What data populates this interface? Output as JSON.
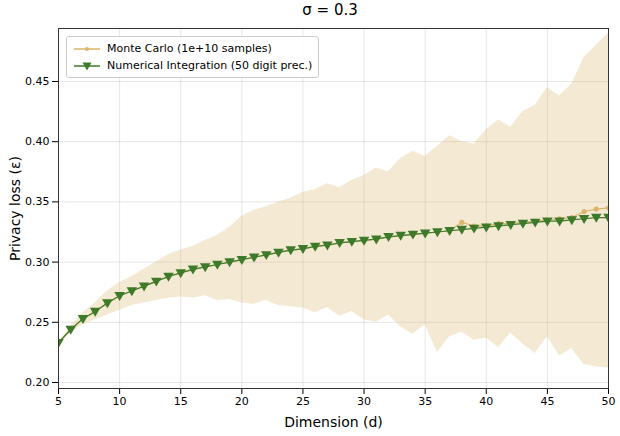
{
  "chart_data": {
    "type": "line",
    "title": "σ = 0.3",
    "x_label": "Dimension (d)",
    "y_label": "Privacy loss (ε)",
    "x": [
      5,
      6,
      7,
      8,
      9,
      10,
      11,
      12,
      13,
      14,
      15,
      16,
      17,
      18,
      19,
      20,
      21,
      22,
      23,
      24,
      25,
      26,
      27,
      28,
      29,
      30,
      31,
      32,
      33,
      34,
      35,
      36,
      37,
      38,
      39,
      40,
      41,
      42,
      43,
      44,
      45,
      46,
      47,
      48,
      49,
      50
    ],
    "series": [
      {
        "name": "Monte Carlo (1e+10 samples)",
        "color": "#dab56a",
        "marker": "circle",
        "values": [
          0.233,
          0.244,
          0.253,
          0.259,
          0.266,
          0.272,
          0.276,
          0.28,
          0.284,
          0.288,
          0.291,
          0.294,
          0.296,
          0.298,
          0.3,
          0.302,
          0.304,
          0.306,
          0.308,
          0.31,
          0.311,
          0.313,
          0.314,
          0.316,
          0.317,
          0.318,
          0.319,
          0.321,
          0.322,
          0.323,
          0.324,
          0.325,
          0.326,
          0.333,
          0.33,
          0.33,
          0.332,
          0.332,
          0.333,
          0.334,
          0.335,
          0.336,
          0.337,
          0.342,
          0.344,
          0.345
        ],
        "lower": [
          0.233,
          0.241,
          0.248,
          0.252,
          0.256,
          0.26,
          0.264,
          0.266,
          0.268,
          0.27,
          0.271,
          0.27,
          0.272,
          0.268,
          0.269,
          0.266,
          0.265,
          0.268,
          0.264,
          0.263,
          0.262,
          0.258,
          0.262,
          0.255,
          0.259,
          0.252,
          0.25,
          0.256,
          0.246,
          0.24,
          0.248,
          0.225,
          0.238,
          0.242,
          0.235,
          0.237,
          0.229,
          0.241,
          0.232,
          0.224,
          0.238,
          0.222,
          0.228,
          0.215,
          0.213,
          0.212
        ],
        "upper": [
          0.233,
          0.247,
          0.258,
          0.266,
          0.276,
          0.283,
          0.288,
          0.294,
          0.3,
          0.306,
          0.31,
          0.313,
          0.318,
          0.322,
          0.329,
          0.338,
          0.343,
          0.346,
          0.35,
          0.353,
          0.358,
          0.36,
          0.365,
          0.362,
          0.368,
          0.372,
          0.378,
          0.375,
          0.386,
          0.392,
          0.388,
          0.396,
          0.405,
          0.4,
          0.398,
          0.41,
          0.418,
          0.412,
          0.425,
          0.43,
          0.445,
          0.438,
          0.448,
          0.47,
          0.48,
          0.49
        ]
      },
      {
        "name": "Numerical Integration (50 digit prec.)",
        "color": "#3d7a2a",
        "marker": "triangle-down",
        "values": [
          0.233,
          0.244,
          0.253,
          0.259,
          0.266,
          0.272,
          0.276,
          0.28,
          0.284,
          0.288,
          0.291,
          0.294,
          0.296,
          0.298,
          0.3,
          0.302,
          0.304,
          0.306,
          0.308,
          0.31,
          0.311,
          0.313,
          0.314,
          0.316,
          0.317,
          0.318,
          0.319,
          0.321,
          0.322,
          0.323,
          0.324,
          0.325,
          0.326,
          0.327,
          0.328,
          0.329,
          0.33,
          0.331,
          0.332,
          0.333,
          0.334,
          0.334,
          0.335,
          0.336,
          0.337,
          0.337
        ]
      }
    ],
    "xlim": [
      5,
      50
    ],
    "xticks": [
      5,
      10,
      15,
      20,
      25,
      30,
      35,
      40,
      45,
      50
    ],
    "ylim": [
      0.195,
      0.494
    ],
    "yticks": [
      {
        "value": 0.2,
        "label": "0.20"
      },
      0.25,
      {
        "value": 0.3,
        "label": "0.30"
      },
      0.35,
      {
        "value": 0.4,
        "label": "0.40"
      },
      0.45
    ],
    "grid": true,
    "legend": "upper left"
  }
}
